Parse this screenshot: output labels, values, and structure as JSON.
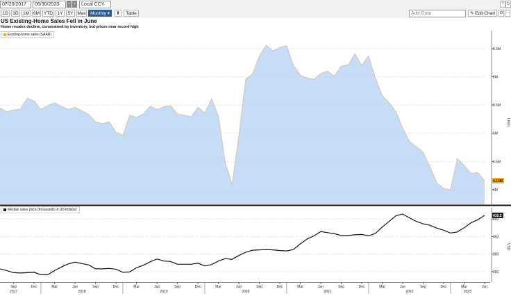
{
  "toolbar": {
    "start_date": "07/20/2017",
    "end_date": "06/30/2023",
    "currency": "Local CCY",
    "ranges": [
      "1D",
      "3D",
      "1M",
      "6M",
      "YTD",
      "1Y",
      "5Y",
      "Max"
    ],
    "frequency": "Monthly",
    "table_label": "Table",
    "add_data_placeholder": "Add Data",
    "edit_chart_label": "Edit Chart"
  },
  "chart_title": "US Existing-Home Sales Fell in June",
  "chart_subtitle": "Home resales decline, constrained by inventory, but prices near record high",
  "colors": {
    "area_fill": "#c7dcf7",
    "area_edge": "#d9c3a3",
    "price_line": "#111111",
    "sales_badge": "#f7a823",
    "price_badge": "#222222"
  },
  "chart_data": [
    {
      "type": "area",
      "series": [
        {
          "name": "Existing-home sales (SAAR)",
          "x": [
            "2017-07",
            "2017-08",
            "2017-09",
            "2017-10",
            "2017-11",
            "2017-12",
            "2018-01",
            "2018-02",
            "2018-03",
            "2018-04",
            "2018-05",
            "2018-06",
            "2018-07",
            "2018-08",
            "2018-09",
            "2018-10",
            "2018-11",
            "2018-12",
            "2019-01",
            "2019-02",
            "2019-03",
            "2019-04",
            "2019-05",
            "2019-06",
            "2019-07",
            "2019-08",
            "2019-09",
            "2019-10",
            "2019-11",
            "2019-12",
            "2020-01",
            "2020-02",
            "2020-03",
            "2020-04",
            "2020-05",
            "2020-06",
            "2020-07",
            "2020-08",
            "2020-09",
            "2020-10",
            "2020-11",
            "2020-12",
            "2021-01",
            "2021-02",
            "2021-03",
            "2021-04",
            "2021-05",
            "2021-06",
            "2021-07",
            "2021-08",
            "2021-09",
            "2021-10",
            "2021-11",
            "2021-12",
            "2022-01",
            "2022-02",
            "2022-03",
            "2022-04",
            "2022-05",
            "2022-06",
            "2022-07",
            "2022-08",
            "2022-09",
            "2022-10",
            "2022-11",
            "2022-12",
            "2023-01",
            "2023-02",
            "2023-03",
            "2023-04",
            "2023-05",
            "2023-06"
          ],
          "values": [
            5.45,
            5.38,
            5.41,
            5.43,
            5.62,
            5.57,
            5.42,
            5.49,
            5.54,
            5.48,
            5.42,
            5.46,
            5.4,
            5.33,
            5.2,
            5.17,
            5.2,
            5.02,
            4.96,
            5.32,
            5.28,
            5.34,
            5.48,
            5.42,
            5.47,
            5.49,
            5.34,
            5.32,
            5.29,
            5.46,
            5.36,
            5.61,
            5.3,
            4.48,
            4.09,
            4.96,
            5.96,
            6.05,
            6.37,
            6.56,
            6.46,
            6.52,
            6.55,
            6.2,
            6.03,
            5.98,
            5.96,
            6.06,
            6.1,
            6.01,
            6.19,
            6.21,
            6.41,
            6.2,
            6.37,
            5.98,
            5.67,
            5.54,
            5.38,
            5.09,
            4.85,
            4.76,
            4.66,
            4.4,
            4.12,
            4.02,
            4.0,
            4.55,
            4.43,
            4.29,
            4.3,
            4.16
          ]
        }
      ],
      "y_ticks": [
        "4M",
        "4.5M",
        "5M",
        "5.5M",
        "6M",
        "6.5M"
      ],
      "ylim": [
        3.74,
        6.82
      ],
      "ylabel": "Level",
      "last_value_label": "4.16M"
    },
    {
      "type": "line",
      "series": [
        {
          "name": "Median sales price (thousands of US dollars)",
          "x": [
            "2017-07",
            "2017-08",
            "2017-09",
            "2017-10",
            "2017-11",
            "2017-12",
            "2018-01",
            "2018-02",
            "2018-03",
            "2018-04",
            "2018-05",
            "2018-06",
            "2018-07",
            "2018-08",
            "2018-09",
            "2018-10",
            "2018-11",
            "2018-12",
            "2019-01",
            "2019-02",
            "2019-03",
            "2019-04",
            "2019-05",
            "2019-06",
            "2019-07",
            "2019-08",
            "2019-09",
            "2019-10",
            "2019-11",
            "2019-12",
            "2020-01",
            "2020-02",
            "2020-03",
            "2020-04",
            "2020-05",
            "2020-06",
            "2020-07",
            "2020-08",
            "2020-09",
            "2020-10",
            "2020-11",
            "2020-12",
            "2021-01",
            "2021-02",
            "2021-03",
            "2021-04",
            "2021-05",
            "2021-06",
            "2021-07",
            "2021-08",
            "2021-09",
            "2021-10",
            "2021-11",
            "2021-12",
            "2022-01",
            "2022-02",
            "2022-03",
            "2022-04",
            "2022-05",
            "2022-06",
            "2022-07",
            "2022-08",
            "2022-09",
            "2022-10",
            "2022-11",
            "2022-12",
            "2023-01",
            "2023-02",
            "2023-03",
            "2023-04",
            "2023-05",
            "2023-06"
          ],
          "values": [
            258,
            253,
            247,
            246,
            247,
            248,
            241,
            241,
            253,
            263,
            272,
            277,
            273,
            269,
            258,
            258,
            259,
            257,
            248,
            249,
            261,
            268,
            278,
            286,
            280,
            279,
            271,
            271,
            271,
            274,
            266,
            270,
            280,
            287,
            285,
            296,
            305,
            311,
            312,
            313,
            312,
            310,
            309,
            313,
            329,
            343,
            352,
            364,
            361,
            358,
            353,
            353,
            355,
            356,
            352,
            359,
            377,
            393,
            409,
            414,
            403,
            393,
            386,
            382,
            374,
            368,
            360,
            363,
            375,
            389,
            398,
            410.2
          ]
        }
      ],
      "y_ticks": [
        "250",
        "300",
        "350",
        "400"
      ],
      "ylim": [
        228,
        432
      ],
      "ylabel": "USD",
      "last_value_label": "410.2"
    }
  ],
  "x_axis": {
    "months": [
      "Sep",
      "Dec",
      "Mar",
      "Jun",
      "Sep",
      "Dec",
      "Mar",
      "Jun",
      "Sep",
      "Dec",
      "Mar",
      "Jun",
      "Sep",
      "Dec",
      "Mar",
      "Jun",
      "Sep",
      "Dec",
      "Mar",
      "Jun",
      "Sep",
      "Dec",
      "Mar",
      "Jun"
    ],
    "years": [
      "2017",
      "2018",
      "2019",
      "2020",
      "2021",
      "2022",
      "2023"
    ]
  }
}
